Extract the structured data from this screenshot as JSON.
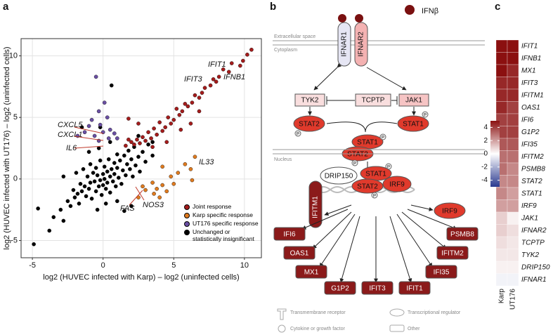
{
  "panels": [
    "a",
    "b",
    "c"
  ],
  "chart_data": [
    {
      "type": "scatter",
      "xlabel": "log2 (HUVEC infected with Karp) – log2 (uninfected cells)",
      "ylabel": "log2 (HUVEC infected with UT176) – log2 (uninfected cells)",
      "xlim": [
        -5.8,
        11.2
      ],
      "ylim": [
        -6.4,
        11.4
      ],
      "xticks": [
        -5,
        0,
        5,
        10
      ],
      "yticks": [
        -5,
        0,
        5,
        10
      ],
      "grid": true,
      "legend": "lower right",
      "series": [
        {
          "name": "Joint response",
          "color": "#a51c1c",
          "x": [
            10.5,
            10.2,
            9.9,
            9.7,
            9.1,
            8.9,
            8.5,
            8.2,
            8.0,
            7.8,
            7.6,
            7.2,
            7.0,
            6.8,
            6.5,
            6.3,
            6.0,
            5.8,
            5.6,
            5.4,
            5.2,
            5.0,
            4.8,
            4.6,
            4.4,
            4.2,
            4.0,
            3.8,
            3.6,
            3.4,
            3.2,
            3.0,
            2.8,
            2.6,
            2.4,
            2.2,
            2.0,
            1.8,
            1.6,
            3.5,
            4.5,
            5.5,
            6.2,
            6.8,
            2.5,
            1.8
          ],
          "y": [
            10.5,
            10.1,
            9.6,
            9.2,
            9.4,
            8.7,
            8.9,
            8.3,
            7.9,
            8.1,
            7.6,
            7.4,
            7.0,
            6.6,
            6.8,
            6.2,
            5.9,
            6.1,
            5.5,
            5.2,
            5.7,
            4.8,
            4.5,
            5.0,
            4.2,
            3.9,
            4.6,
            3.6,
            4.1,
            3.3,
            3.8,
            3.1,
            3.4,
            2.9,
            3.2,
            2.8,
            3.0,
            3.2,
            2.7,
            2.6,
            3.0,
            4.0,
            4.5,
            5.5,
            4.5,
            4.9
          ]
        },
        {
          "name": "Karp specific response",
          "color": "#e07b1f",
          "x": [
            3.5,
            3.8,
            4.2,
            4.5,
            4.8,
            5.0,
            5.3,
            5.8,
            6.2,
            4.0,
            3.6,
            3.0,
            2.5,
            6.3,
            6.5,
            2.8,
            4.2
          ],
          "y": [
            -0.3,
            -0.8,
            -0.5,
            -1.0,
            0.2,
            -0.4,
            0.5,
            1.2,
            0.8,
            -1.5,
            -1.2,
            -0.9,
            -1.5,
            -0.1,
            1.8,
            -0.6,
            1.0
          ]
        },
        {
          "name": "UT176 specific response",
          "color": "#6a4fa3",
          "x": [
            -0.5,
            0.1,
            -0.3,
            -0.8,
            0.3,
            -0.2,
            0.5,
            -1.0,
            -1.3,
            0.0,
            0.8,
            -0.6,
            1.0,
            -1.8,
            0.4,
            -0.3
          ],
          "y": [
            8.3,
            6.2,
            5.5,
            4.8,
            5.0,
            4.4,
            4.0,
            4.3,
            3.8,
            3.8,
            3.7,
            3.5,
            3.3,
            3.5,
            3.3,
            3.1
          ]
        },
        {
          "name": "Unchanged or statistically insignificant",
          "color": "#000000",
          "x": [
            -4.9,
            -3.5,
            -3.0,
            -2.8,
            -2.5,
            -2.3,
            -2.1,
            -2.0,
            -1.9,
            -1.8,
            -1.7,
            -1.6,
            -1.5,
            -1.4,
            -1.3,
            -1.2,
            -1.1,
            -1.0,
            -0.9,
            -0.9,
            -0.8,
            -0.7,
            -0.6,
            -0.5,
            -0.5,
            -0.4,
            -0.3,
            -0.2,
            -0.2,
            -0.1,
            0.0,
            0.0,
            0.1,
            0.1,
            0.2,
            0.3,
            0.3,
            0.4,
            0.5,
            0.5,
            0.6,
            0.7,
            0.8,
            0.8,
            0.9,
            1.0,
            1.0,
            1.1,
            1.2,
            1.3,
            1.4,
            1.5,
            1.6,
            1.7,
            1.8,
            1.9,
            2.0,
            2.1,
            2.2,
            2.3,
            2.5,
            2.6,
            2.8,
            3.0,
            3.2,
            3.5,
            -0.3,
            0.5,
            -1.0,
            0.2,
            1.0,
            -0.4,
            -2.8,
            -4.6,
            -3.8,
            0.6,
            -1.5,
            1.5,
            2.0,
            -0.2,
            2.5,
            3.5
          ],
          "y": [
            -5.3,
            -3.1,
            -2.5,
            0.2,
            -1.8,
            -2.2,
            -0.9,
            -1.5,
            0.5,
            -1.2,
            -2.0,
            -0.4,
            -1.0,
            0.8,
            -0.6,
            -1.4,
            0.2,
            -0.8,
            1.2,
            -0.3,
            -1.6,
            0.5,
            -0.2,
            -1.0,
            0.9,
            0.3,
            -0.6,
            1.5,
            -0.1,
            -1.3,
            0.4,
            -0.5,
            1.0,
            0.0,
            -0.8,
            0.6,
            -0.3,
            1.6,
            0.2,
            -1.1,
            0.8,
            -0.2,
            1.3,
            0.4,
            -0.6,
            0.9,
            2.0,
            0.1,
            1.5,
            -0.4,
            0.7,
            1.9,
            0.3,
            1.2,
            2.3,
            0.8,
            1.6,
            0.2,
            2.6,
            1.1,
            1.8,
            0.6,
            2.2,
            1.4,
            2.8,
            1.9,
            2.5,
            3.0,
            2.2,
            -2.0,
            -1.8,
            -2.5,
            -3.4,
            -2.4,
            -4.2,
            7.6,
            4.2,
            -2.6,
            -2.2,
            4.2,
            3.5,
            3.0
          ]
        }
      ],
      "annotations": [
        "IFIT1",
        "IFNB1",
        "IFIT3",
        "CXCL5",
        "CXCL1",
        "IL6",
        "IL33",
        "FAS",
        "NOS3"
      ]
    },
    {
      "type": "heatmap",
      "columns": [
        "Karp",
        "UT176"
      ],
      "rows": [
        "IFIT1",
        "IFNB1",
        "MX1",
        "IFIT3",
        "IFITM1",
        "OAS1",
        "IFI6",
        "G1P2",
        "IFI35",
        "IFITM2",
        "PSMB8",
        "STAT2",
        "STAT1",
        "IRF9",
        "JAK1",
        "IFNAR2",
        "TCPTP",
        "TYK2",
        "DRIP150",
        "IFNAR1"
      ],
      "values": [
        [
          5,
          5
        ],
        [
          5,
          5
        ],
        [
          5,
          4.5
        ],
        [
          4.5,
          4.5
        ],
        [
          4.5,
          4.5
        ],
        [
          4.5,
          4
        ],
        [
          4,
          4
        ],
        [
          4,
          4
        ],
        [
          3.5,
          3.5
        ],
        [
          3,
          3
        ],
        [
          3,
          2.5
        ],
        [
          2.5,
          2.5
        ],
        [
          2.5,
          2
        ],
        [
          2,
          2
        ],
        [
          1,
          0.3
        ],
        [
          1,
          0.7
        ],
        [
          0.7,
          0.5
        ],
        [
          0.5,
          0.5
        ],
        [
          0.3,
          0.3
        ],
        [
          -0.3,
          -0.3
        ]
      ],
      "zlim": [
        -5,
        5
      ],
      "zticks": [
        -4,
        -2,
        0,
        2,
        4
      ],
      "colors": [
        "#2b3a8f",
        "#ffffff",
        "#8b1010"
      ]
    }
  ],
  "diagram": {
    "ligand": "IFNβ",
    "compartments": [
      "Extracellular space",
      "Cytoplasm",
      "Nucleus"
    ],
    "receptors": [
      "IFNAR1",
      "IFNAR2",
      "IFITM1"
    ],
    "kinases": [
      "TYK2",
      "TCPTP",
      "JAK1"
    ],
    "stats": [
      "STAT2",
      "STAT1"
    ],
    "phospho": "P",
    "regulators": [
      "DRIP150",
      "STAT1",
      "STAT2",
      "IRF9"
    ],
    "irf": "IRF9",
    "targets": [
      "IFI6",
      "OAS1",
      "MX1",
      "G1P2",
      "IFIT3",
      "IFIT1",
      "IFI35",
      "IFITM2",
      "PSMB8"
    ],
    "legend": [
      "Transmembrane receptor",
      "Transcriptional regulator",
      "Cytokine or growth factor",
      "Other"
    ]
  }
}
